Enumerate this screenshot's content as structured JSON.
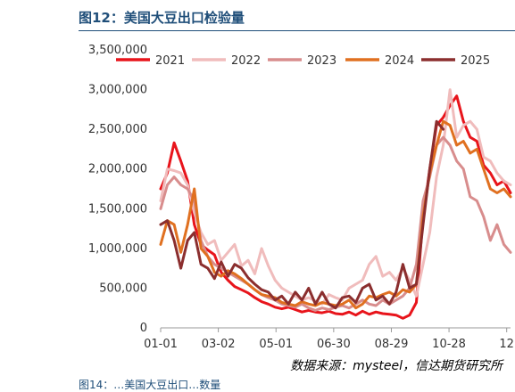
{
  "title": "图12：美国大豆出口检验量",
  "source": "数据来源：mysteel，信达期货研究所",
  "next_caption": "图14：…美国大豆出口…数量",
  "chart_data": {
    "type": "line",
    "title": "",
    "xlabel": "",
    "ylabel": "",
    "x_ticks": [
      "01-01",
      "03-02",
      "05-01",
      "06-30",
      "08-29",
      "10-28",
      "12"
    ],
    "y_ticks": [
      "0",
      "500,000",
      "1,000,000",
      "1,500,000",
      "2,000,000",
      "2,500,000",
      "3,000,000",
      "3,500,000"
    ],
    "ylim": [
      0,
      3500000
    ],
    "xlim": [
      1,
      365
    ],
    "grid": false,
    "legend_position": "top",
    "series": [
      {
        "name": "2021",
        "color": "#e8141b",
        "points": [
          [
            1,
            1750000
          ],
          [
            8,
            1950000
          ],
          [
            15,
            2330000
          ],
          [
            22,
            2100000
          ],
          [
            29,
            1850000
          ],
          [
            36,
            1300000
          ],
          [
            43,
            1050000
          ],
          [
            50,
            980000
          ],
          [
            57,
            920000
          ],
          [
            64,
            700000
          ],
          [
            71,
            600000
          ],
          [
            78,
            520000
          ],
          [
            85,
            480000
          ],
          [
            92,
            440000
          ],
          [
            99,
            380000
          ],
          [
            106,
            330000
          ],
          [
            113,
            300000
          ],
          [
            120,
            260000
          ],
          [
            127,
            240000
          ],
          [
            134,
            260000
          ],
          [
            141,
            230000
          ],
          [
            148,
            200000
          ],
          [
            155,
            220000
          ],
          [
            162,
            200000
          ],
          [
            169,
            190000
          ],
          [
            176,
            210000
          ],
          [
            183,
            180000
          ],
          [
            190,
            170000
          ],
          [
            197,
            200000
          ],
          [
            204,
            160000
          ],
          [
            211,
            210000
          ],
          [
            218,
            170000
          ],
          [
            225,
            200000
          ],
          [
            232,
            180000
          ],
          [
            239,
            170000
          ],
          [
            246,
            160000
          ],
          [
            253,
            120000
          ],
          [
            260,
            160000
          ],
          [
            267,
            320000
          ],
          [
            274,
            1400000
          ],
          [
            281,
            2000000
          ],
          [
            288,
            2550000
          ],
          [
            295,
            2650000
          ],
          [
            302,
            2800000
          ],
          [
            309,
            2920000
          ],
          [
            316,
            2600000
          ],
          [
            323,
            2400000
          ],
          [
            330,
            2350000
          ],
          [
            337,
            2050000
          ],
          [
            344,
            1950000
          ],
          [
            351,
            1800000
          ],
          [
            358,
            1850000
          ],
          [
            365,
            1700000
          ]
        ]
      },
      {
        "name": "2022",
        "color": "#f0bcbc",
        "points": [
          [
            1,
            1600000
          ],
          [
            8,
            2000000
          ],
          [
            15,
            1980000
          ],
          [
            22,
            1950000
          ],
          [
            29,
            1800000
          ],
          [
            36,
            1450000
          ],
          [
            43,
            1200000
          ],
          [
            50,
            1050000
          ],
          [
            57,
            1100000
          ],
          [
            64,
            850000
          ],
          [
            71,
            950000
          ],
          [
            78,
            1050000
          ],
          [
            85,
            780000
          ],
          [
            92,
            850000
          ],
          [
            99,
            680000
          ],
          [
            106,
            1000000
          ],
          [
            113,
            780000
          ],
          [
            120,
            600000
          ],
          [
            127,
            500000
          ],
          [
            134,
            450000
          ],
          [
            141,
            400000
          ],
          [
            148,
            350000
          ],
          [
            155,
            380000
          ],
          [
            162,
            340000
          ],
          [
            169,
            300000
          ],
          [
            176,
            420000
          ],
          [
            183,
            380000
          ],
          [
            190,
            350000
          ],
          [
            197,
            500000
          ],
          [
            204,
            550000
          ],
          [
            211,
            600000
          ],
          [
            218,
            800000
          ],
          [
            225,
            900000
          ],
          [
            232,
            650000
          ],
          [
            239,
            700000
          ],
          [
            246,
            600000
          ],
          [
            253,
            750000
          ],
          [
            260,
            600000
          ],
          [
            267,
            400000
          ],
          [
            274,
            800000
          ],
          [
            281,
            1200000
          ],
          [
            288,
            1900000
          ],
          [
            295,
            2300000
          ],
          [
            302,
            3000000
          ],
          [
            309,
            2400000
          ],
          [
            316,
            2550000
          ],
          [
            323,
            2600000
          ],
          [
            330,
            2500000
          ],
          [
            337,
            2150000
          ],
          [
            344,
            2100000
          ],
          [
            351,
            1950000
          ],
          [
            358,
            1850000
          ],
          [
            365,
            1800000
          ]
        ]
      },
      {
        "name": "2023",
        "color": "#d88d8d",
        "points": [
          [
            1,
            1500000
          ],
          [
            8,
            1800000
          ],
          [
            15,
            1900000
          ],
          [
            22,
            1800000
          ],
          [
            29,
            1750000
          ],
          [
            36,
            1600000
          ],
          [
            43,
            1100000
          ],
          [
            50,
            900000
          ],
          [
            57,
            800000
          ],
          [
            64,
            750000
          ],
          [
            71,
            700000
          ],
          [
            78,
            650000
          ],
          [
            85,
            600000
          ],
          [
            92,
            550000
          ],
          [
            99,
            480000
          ],
          [
            106,
            420000
          ],
          [
            113,
            380000
          ],
          [
            120,
            350000
          ],
          [
            127,
            300000
          ],
          [
            134,
            280000
          ],
          [
            141,
            260000
          ],
          [
            148,
            300000
          ],
          [
            155,
            250000
          ],
          [
            162,
            220000
          ],
          [
            169,
            250000
          ],
          [
            176,
            230000
          ],
          [
            183,
            260000
          ],
          [
            190,
            280000
          ],
          [
            197,
            250000
          ],
          [
            204,
            300000
          ],
          [
            211,
            350000
          ],
          [
            218,
            300000
          ],
          [
            225,
            280000
          ],
          [
            232,
            350000
          ],
          [
            239,
            300000
          ],
          [
            246,
            350000
          ],
          [
            253,
            400000
          ],
          [
            260,
            500000
          ],
          [
            267,
            800000
          ],
          [
            274,
            1600000
          ],
          [
            281,
            1900000
          ],
          [
            288,
            2300000
          ],
          [
            295,
            2400000
          ],
          [
            302,
            2300000
          ],
          [
            309,
            2100000
          ],
          [
            316,
            2000000
          ],
          [
            323,
            1650000
          ],
          [
            330,
            1600000
          ],
          [
            337,
            1400000
          ],
          [
            344,
            1100000
          ],
          [
            351,
            1300000
          ],
          [
            358,
            1050000
          ],
          [
            365,
            950000
          ]
        ]
      },
      {
        "name": "2024",
        "color": "#e07020",
        "points": [
          [
            1,
            1050000
          ],
          [
            8,
            1350000
          ],
          [
            15,
            1300000
          ],
          [
            22,
            950000
          ],
          [
            29,
            1300000
          ],
          [
            36,
            1750000
          ],
          [
            43,
            1000000
          ],
          [
            50,
            900000
          ],
          [
            57,
            700000
          ],
          [
            64,
            650000
          ],
          [
            71,
            720000
          ],
          [
            78,
            680000
          ],
          [
            85,
            620000
          ],
          [
            92,
            550000
          ],
          [
            99,
            480000
          ],
          [
            106,
            420000
          ],
          [
            113,
            400000
          ],
          [
            120,
            380000
          ],
          [
            127,
            320000
          ],
          [
            134,
            300000
          ],
          [
            141,
            280000
          ],
          [
            148,
            330000
          ],
          [
            155,
            300000
          ],
          [
            162,
            280000
          ],
          [
            169,
            320000
          ],
          [
            176,
            300000
          ],
          [
            183,
            280000
          ],
          [
            190,
            300000
          ],
          [
            197,
            350000
          ],
          [
            204,
            250000
          ],
          [
            211,
            300000
          ],
          [
            218,
            400000
          ],
          [
            225,
            380000
          ],
          [
            232,
            420000
          ],
          [
            239,
            450000
          ],
          [
            246,
            400000
          ],
          [
            253,
            480000
          ],
          [
            260,
            450000
          ],
          [
            267,
            550000
          ],
          [
            274,
            1400000
          ],
          [
            281,
            1950000
          ],
          [
            288,
            2300000
          ],
          [
            295,
            2600000
          ],
          [
            302,
            2550000
          ],
          [
            309,
            2300000
          ],
          [
            316,
            2350000
          ],
          [
            323,
            2200000
          ],
          [
            330,
            2250000
          ],
          [
            337,
            2000000
          ],
          [
            344,
            1750000
          ],
          [
            351,
            1700000
          ],
          [
            358,
            1750000
          ],
          [
            365,
            1650000
          ]
        ]
      },
      {
        "name": "2025",
        "color": "#8b2e2e",
        "points": [
          [
            1,
            1300000
          ],
          [
            8,
            1350000
          ],
          [
            15,
            1100000
          ],
          [
            22,
            750000
          ],
          [
            29,
            1100000
          ],
          [
            36,
            1200000
          ],
          [
            43,
            800000
          ],
          [
            50,
            750000
          ],
          [
            57,
            620000
          ],
          [
            64,
            830000
          ],
          [
            71,
            650000
          ],
          [
            78,
            800000
          ],
          [
            85,
            750000
          ],
          [
            92,
            630000
          ],
          [
            99,
            550000
          ],
          [
            106,
            480000
          ],
          [
            113,
            450000
          ],
          [
            120,
            350000
          ],
          [
            127,
            400000
          ],
          [
            134,
            300000
          ],
          [
            141,
            450000
          ],
          [
            148,
            350000
          ],
          [
            155,
            500000
          ],
          [
            162,
            300000
          ],
          [
            169,
            450000
          ],
          [
            176,
            300000
          ],
          [
            183,
            250000
          ],
          [
            190,
            380000
          ],
          [
            197,
            400000
          ],
          [
            204,
            320000
          ],
          [
            211,
            500000
          ],
          [
            218,
            550000
          ],
          [
            225,
            350000
          ],
          [
            232,
            400000
          ],
          [
            239,
            300000
          ],
          [
            246,
            450000
          ],
          [
            253,
            800000
          ],
          [
            260,
            500000
          ],
          [
            267,
            550000
          ],
          [
            274,
            1300000
          ],
          [
            281,
            2000000
          ],
          [
            288,
            2600000
          ],
          [
            295,
            2500000
          ]
        ]
      }
    ]
  }
}
